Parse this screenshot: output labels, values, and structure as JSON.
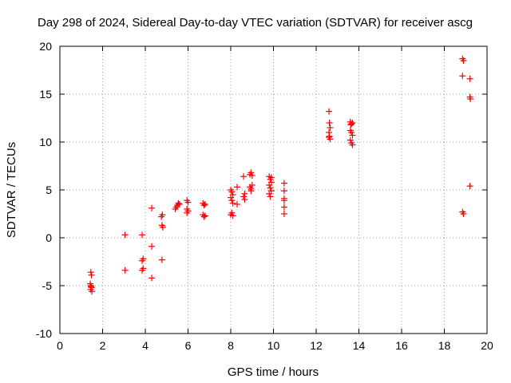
{
  "chart_data": {
    "type": "scatter",
    "title": "Day 298 of 2024, Sidereal Day-to-day VTEC variation (SDTVAR) for receiver ascg",
    "xlabel": "GPS time / hours",
    "ylabel": "SDTVAR / TECUs",
    "xlim": [
      0,
      20
    ],
    "ylim": [
      -10,
      20
    ],
    "xticks": [
      0,
      2,
      4,
      6,
      8,
      10,
      12,
      14,
      16,
      18,
      20
    ],
    "yticks": [
      -10,
      -5,
      0,
      5,
      10,
      15,
      20
    ],
    "grid": true,
    "marker": "+",
    "color": "#ff0000",
    "series": [
      {
        "name": "SDTVAR",
        "points": [
          [
            1.45,
            -3.6
          ],
          [
            1.48,
            -3.9
          ],
          [
            1.42,
            -4.8
          ],
          [
            1.45,
            -5.0
          ],
          [
            1.48,
            -5.2
          ],
          [
            1.44,
            -5.4
          ],
          [
            1.5,
            -5.6
          ],
          [
            1.46,
            -5.1
          ],
          [
            3.05,
            0.3
          ],
          [
            3.05,
            -3.4
          ],
          [
            3.85,
            0.3
          ],
          [
            3.9,
            -2.2
          ],
          [
            3.85,
            -2.4
          ],
          [
            3.9,
            -3.2
          ],
          [
            3.85,
            -3.4
          ],
          [
            4.3,
            3.1
          ],
          [
            4.3,
            -0.9
          ],
          [
            4.3,
            -4.2
          ],
          [
            4.75,
            2.2
          ],
          [
            4.8,
            2.4
          ],
          [
            4.78,
            1.3
          ],
          [
            4.82,
            1.1
          ],
          [
            4.78,
            -2.3
          ],
          [
            5.4,
            3.0
          ],
          [
            5.45,
            3.2
          ],
          [
            5.5,
            3.4
          ],
          [
            5.55,
            3.6
          ],
          [
            5.6,
            3.5
          ],
          [
            5.95,
            3.9
          ],
          [
            6.0,
            3.7
          ],
          [
            5.95,
            3.0
          ],
          [
            6.0,
            2.8
          ],
          [
            5.95,
            2.6
          ],
          [
            6.7,
            3.6
          ],
          [
            6.75,
            3.4
          ],
          [
            6.8,
            3.5
          ],
          [
            6.7,
            2.4
          ],
          [
            6.75,
            2.2
          ],
          [
            6.8,
            2.3
          ],
          [
            8.0,
            5.0
          ],
          [
            8.05,
            4.8
          ],
          [
            8.1,
            4.5
          ],
          [
            8.0,
            4.2
          ],
          [
            8.05,
            3.9
          ],
          [
            8.1,
            3.6
          ],
          [
            8.0,
            2.4
          ],
          [
            8.05,
            2.6
          ],
          [
            8.1,
            2.3
          ],
          [
            8.3,
            5.3
          ],
          [
            8.3,
            3.5
          ],
          [
            8.6,
            6.4
          ],
          [
            8.65,
            4.6
          ],
          [
            8.6,
            4.3
          ],
          [
            8.65,
            4.0
          ],
          [
            8.9,
            6.6
          ],
          [
            8.95,
            6.8
          ],
          [
            9.0,
            6.5
          ],
          [
            8.9,
            5.3
          ],
          [
            8.95,
            5.1
          ],
          [
            9.0,
            5.5
          ],
          [
            8.95,
            4.9
          ],
          [
            9.8,
            6.4
          ],
          [
            9.85,
            6.1
          ],
          [
            9.9,
            5.8
          ],
          [
            9.8,
            5.5
          ],
          [
            9.85,
            5.2
          ],
          [
            9.9,
            4.9
          ],
          [
            9.8,
            4.6
          ],
          [
            9.85,
            4.3
          ],
          [
            9.9,
            6.3
          ],
          [
            10.5,
            5.7
          ],
          [
            10.5,
            4.9
          ],
          [
            10.5,
            4.1
          ],
          [
            10.5,
            3.9
          ],
          [
            10.5,
            3.2
          ],
          [
            10.5,
            2.5
          ],
          [
            12.6,
            13.2
          ],
          [
            12.62,
            12.0
          ],
          [
            12.65,
            11.5
          ],
          [
            12.6,
            11.0
          ],
          [
            12.62,
            10.6
          ],
          [
            12.65,
            10.3
          ],
          [
            12.6,
            10.5
          ],
          [
            13.6,
            12.1
          ],
          [
            13.65,
            11.9
          ],
          [
            13.7,
            12.0
          ],
          [
            13.6,
            11.2
          ],
          [
            13.65,
            11.0
          ],
          [
            13.7,
            10.7
          ],
          [
            13.6,
            10.2
          ],
          [
            13.65,
            9.9
          ],
          [
            13.7,
            9.7
          ],
          [
            13.62,
            11.8
          ],
          [
            18.85,
            18.7
          ],
          [
            18.9,
            18.5
          ],
          [
            18.85,
            16.9
          ],
          [
            18.85,
            2.7
          ],
          [
            18.9,
            2.5
          ],
          [
            19.2,
            16.6
          ],
          [
            19.2,
            14.7
          ],
          [
            19.22,
            14.5
          ],
          [
            19.2,
            5.4
          ]
        ]
      }
    ]
  }
}
